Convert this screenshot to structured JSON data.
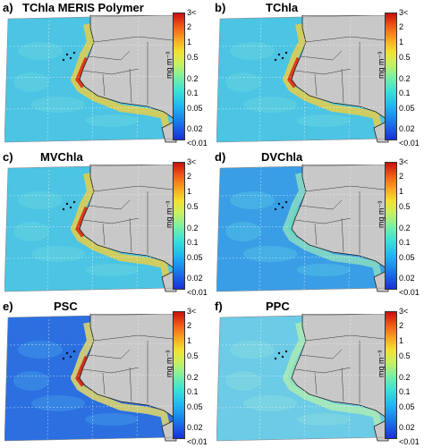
{
  "panels": [
    {
      "label": "a)",
      "title": "TChla MERIS Polymer",
      "variant": "high"
    },
    {
      "label": "b)",
      "title": "TChla",
      "variant": "high"
    },
    {
      "label": "c)",
      "title": "MVChla",
      "variant": "high"
    },
    {
      "label": "d)",
      "title": "DVChla",
      "variant": "mid"
    },
    {
      "label": "e)",
      "title": "PSC",
      "variant": "low"
    },
    {
      "label": "f)",
      "title": "PPC",
      "variant": "pale"
    }
  ],
  "colorbar": {
    "unit": "mg m⁻³",
    "ticks": [
      "3<",
      "2",
      "1",
      "0.5",
      "0.2",
      "0.1",
      "0.05",
      "0.02",
      "<0.01"
    ]
  },
  "colors": {
    "land": "#c8c8c8",
    "ocean_mid": "#55c8e8",
    "ocean_high": "#3cc0e0",
    "coast_hot": "#e02010"
  }
}
